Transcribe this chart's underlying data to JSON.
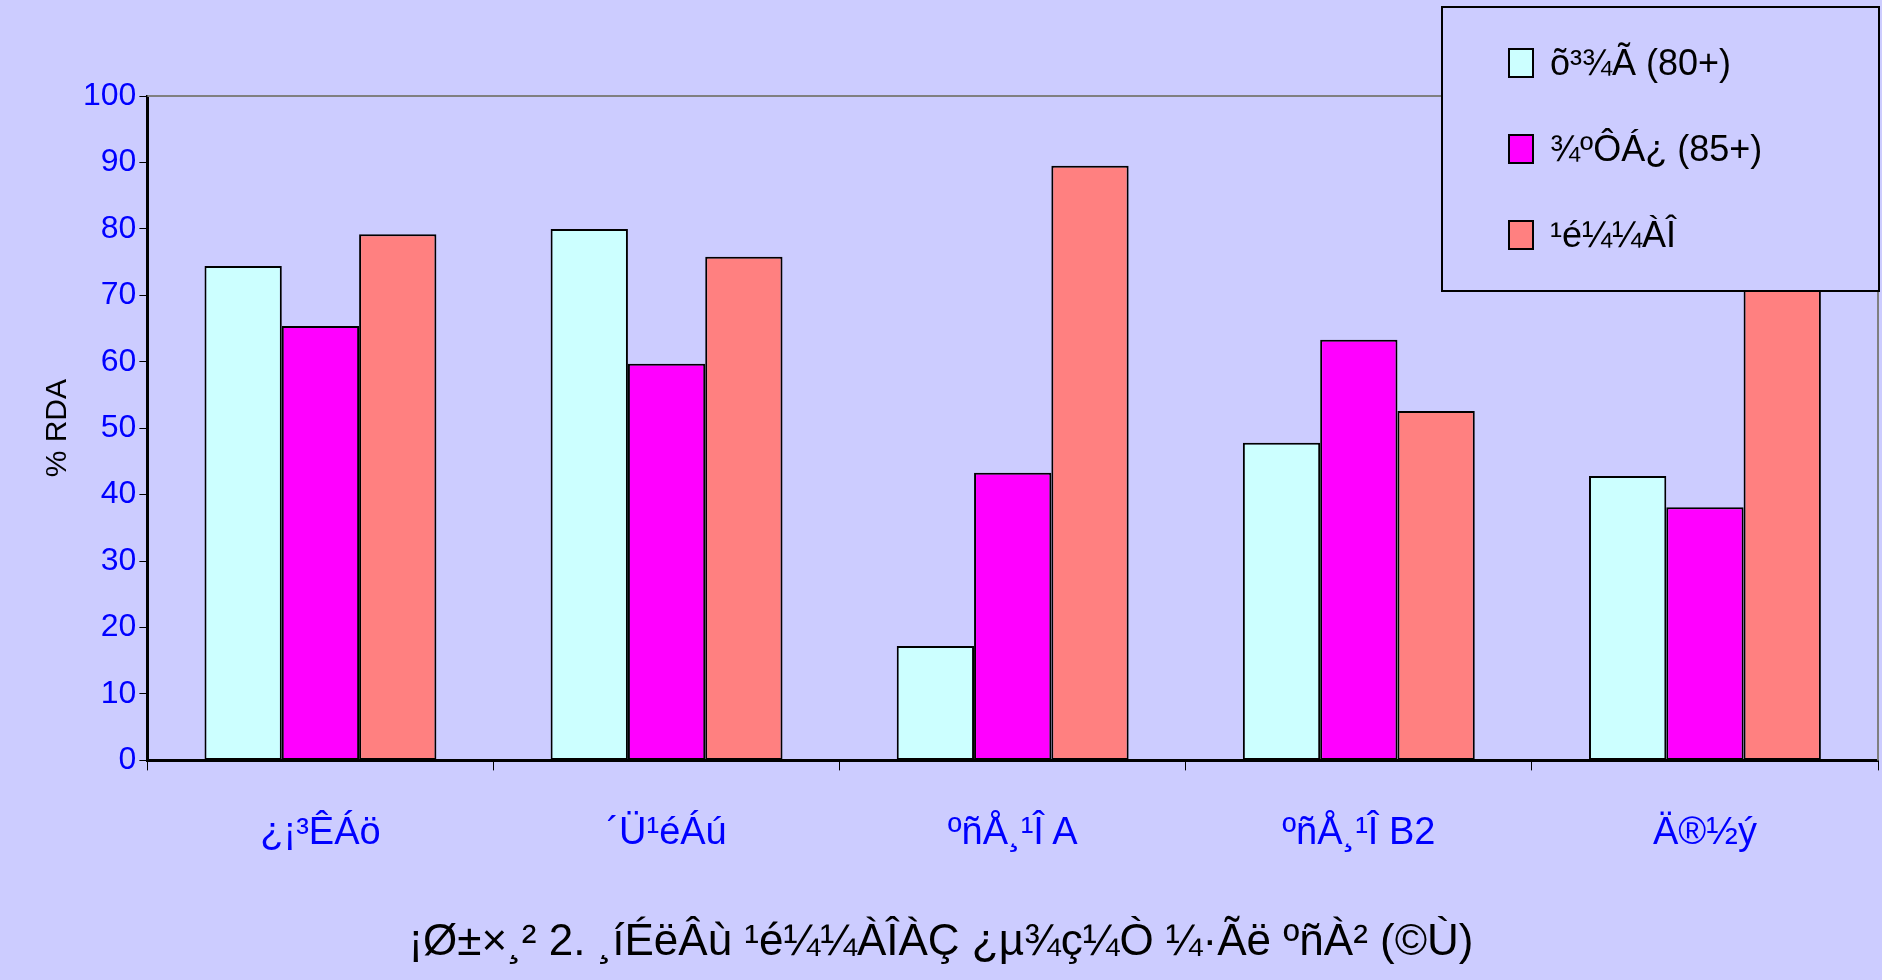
{
  "chart_data": {
    "type": "bar",
    "ylabel": "% RDA",
    "categories": [
      "¿¡³ÊÁö",
      "´Ü¹éÁú",
      "ºñÅ¸¹Î A",
      "ºñÅ¸¹Î B2",
      "Ä®½ý"
    ],
    "series": [
      {
        "name": "õ³¾Ã (80+)",
        "color": "#ccffff",
        "values": [
          74.4,
          80.0,
          17.2,
          47.8,
          42.8
        ]
      },
      {
        "name": "¾ºÔÁ¿ (85+)",
        "color": "#ff00ff",
        "values": [
          65.4,
          59.7,
          43.3,
          63.3,
          38.1
        ]
      },
      {
        "name": "¹é¼¼ÀÎ",
        "color": "#ff8080",
        "values": [
          79.2,
          75.8,
          89.5,
          52.6,
          70.8
        ]
      }
    ],
    "ylim": [
      0,
      100
    ],
    "yticks": [
      0,
      10,
      20,
      30,
      40,
      50,
      60,
      70,
      80,
      90,
      100
    ],
    "grid": false,
    "legend": "top right",
    "annotations": [
      "¡Ø±×¸² 2. ¸íÉëÂù ¹é¼¼ÀÎÀÇ ¿µ¾ç¼Ò ¼·Ãë ºñÀ² (©Ù)"
    ]
  }
}
